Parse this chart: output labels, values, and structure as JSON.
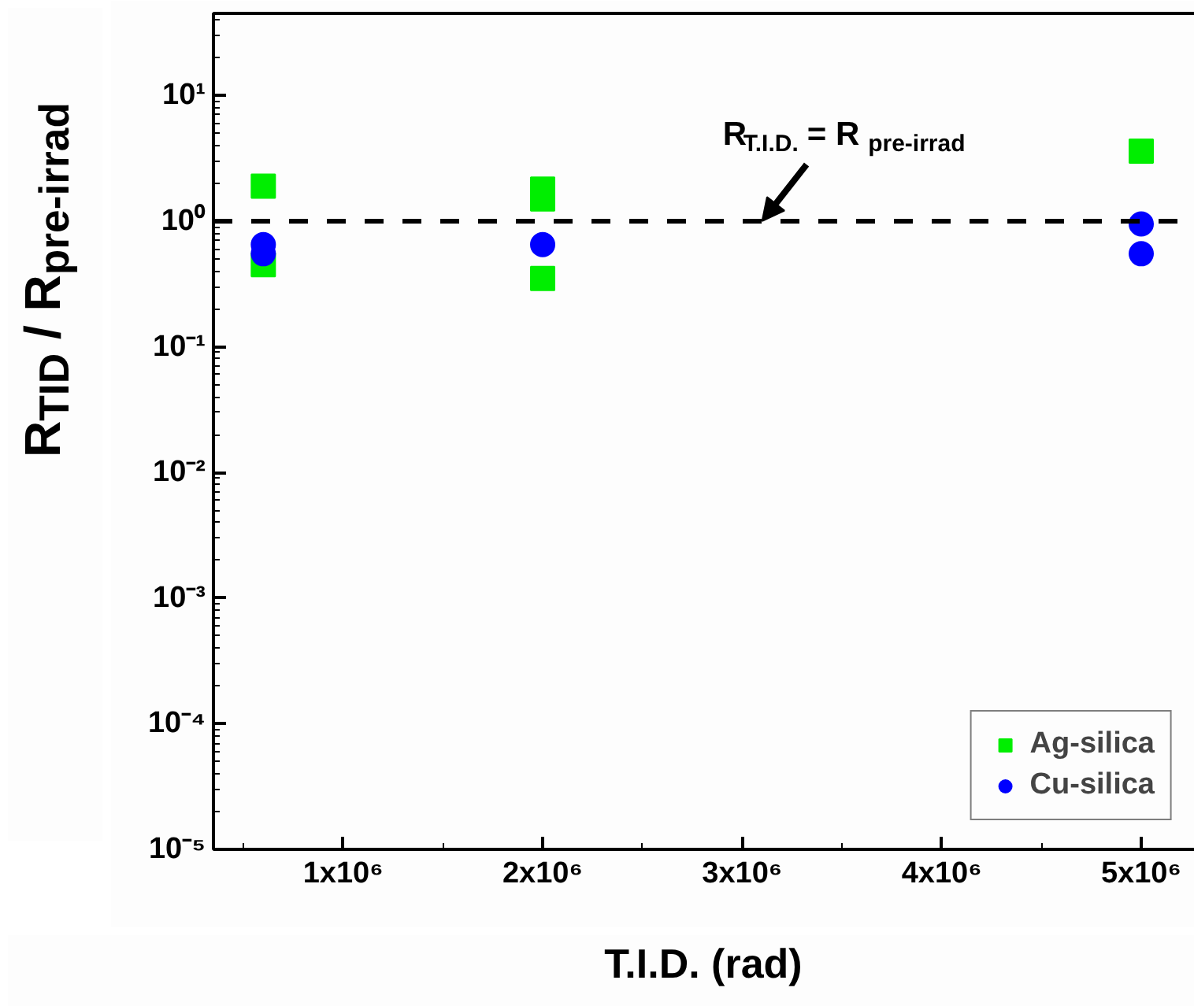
{
  "chart_data": {
    "type": "scatter",
    "xlabel": "T.I.D. (rad)",
    "ylabel": "R$_{TID}$ / R$_{pre-irrad}$",
    "series": [
      {
        "name": "Ag-silica",
        "color": "#00ee00",
        "marker": "square",
        "x": [
          600000,
          600000,
          2000000,
          2000000,
          2000000,
          5000000
        ],
        "values": [
          1.9,
          0.45,
          1.8,
          1.5,
          0.35,
          3.6
        ]
      },
      {
        "name": "Cu-silica",
        "color": "#0000ff",
        "marker": "circle",
        "x": [
          600000,
          600000,
          2000000,
          5000000,
          5000000
        ],
        "values": [
          0.65,
          0.55,
          0.65,
          0.95,
          0.55
        ]
      }
    ],
    "log": "y",
    "xlim": [
      350000,
      5300000
    ],
    "ylim": [
      1e-05,
      45
    ],
    "xticks": [
      {
        "value": 1000000,
        "label": "1x10⁶"
      },
      {
        "value": 2000000,
        "label": "2x10⁶"
      },
      {
        "value": 3000000,
        "label": "3x10⁶"
      },
      {
        "value": 4000000,
        "label": "4x10⁶"
      },
      {
        "value": 5000000,
        "label": "5x10⁶"
      }
    ],
    "yticks": [
      {
        "value": 1e-05,
        "label": "10⁻⁵"
      },
      {
        "value": 0.0001,
        "label": "10⁻⁴"
      },
      {
        "value": 0.001,
        "label": "10⁻³"
      },
      {
        "value": 0.01,
        "label": "10⁻²"
      },
      {
        "value": 0.1,
        "label": "10⁻¹"
      },
      {
        "value": 1,
        "label": "10⁰"
      },
      {
        "value": 10,
        "label": "10¹"
      }
    ],
    "ref_lines": [
      {
        "axis": "y",
        "value": 1,
        "color": "#000000",
        "line_style": "dashed"
      }
    ],
    "annotations": [
      {
        "text": "R$_{T.I.D.}$ = R$_{pre-irrad}$",
        "x": 3100000,
        "y": 1
      }
    ],
    "grid": false,
    "legend": "bottom right"
  }
}
